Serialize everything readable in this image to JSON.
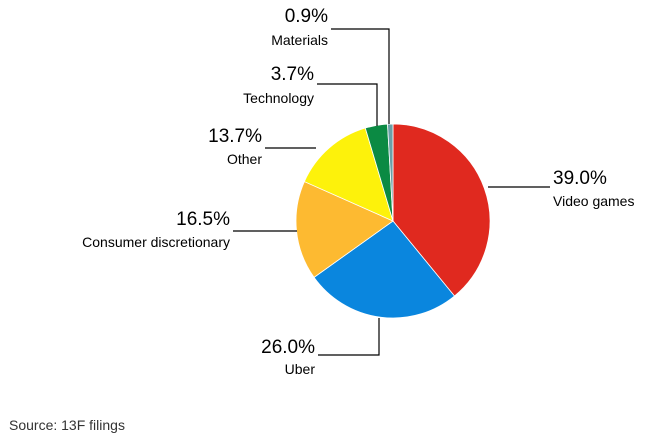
{
  "chart_data": {
    "type": "pie",
    "slices": [
      {
        "label": "Video games",
        "value": 39.0,
        "display": "39.0%",
        "color": "#e0291f"
      },
      {
        "label": "Uber",
        "value": 26.0,
        "display": "26.0%",
        "color": "#0a86de"
      },
      {
        "label": "Consumer discretionary",
        "value": 16.5,
        "display": "16.5%",
        "color": "#fdba31"
      },
      {
        "label": "Other",
        "value": 13.7,
        "display": "13.7%",
        "color": "#fdf20b"
      },
      {
        "label": "Technology",
        "value": 3.7,
        "display": "3.7%",
        "color": "#0b8a43"
      },
      {
        "label": "Materials",
        "value": 0.9,
        "display": "0.9%",
        "color": "#6aa0a8"
      }
    ]
  },
  "footer": {
    "source": "Source: 13F filings"
  }
}
